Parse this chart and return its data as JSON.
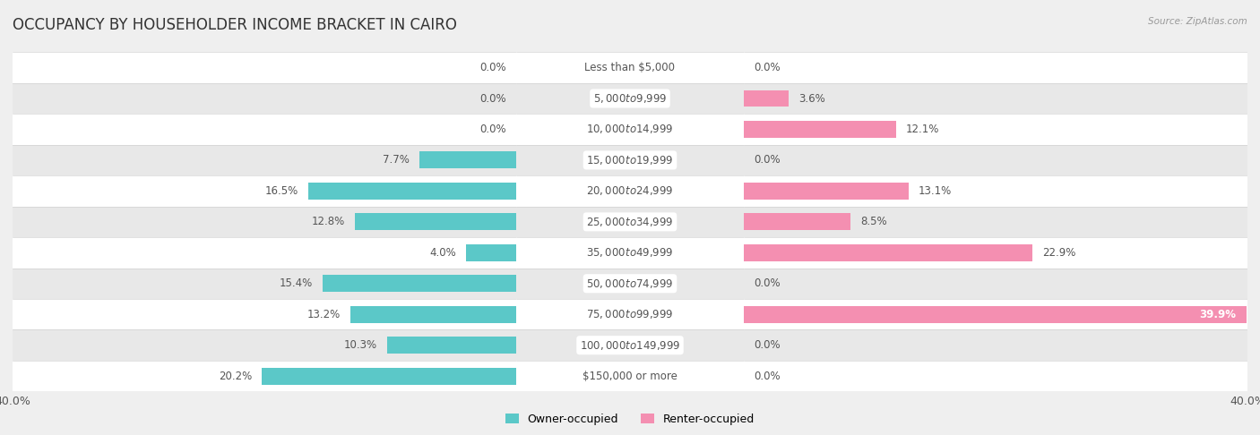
{
  "title": "OCCUPANCY BY HOUSEHOLDER INCOME BRACKET IN CAIRO",
  "source": "Source: ZipAtlas.com",
  "categories": [
    "Less than $5,000",
    "$5,000 to $9,999",
    "$10,000 to $14,999",
    "$15,000 to $19,999",
    "$20,000 to $24,999",
    "$25,000 to $34,999",
    "$35,000 to $49,999",
    "$50,000 to $74,999",
    "$75,000 to $99,999",
    "$100,000 to $149,999",
    "$150,000 or more"
  ],
  "owner_values": [
    0.0,
    0.0,
    0.0,
    7.7,
    16.5,
    12.8,
    4.0,
    15.4,
    13.2,
    10.3,
    20.2
  ],
  "renter_values": [
    0.0,
    3.6,
    12.1,
    0.0,
    13.1,
    8.5,
    22.9,
    0.0,
    39.9,
    0.0,
    0.0
  ],
  "owner_color": "#5bc8c8",
  "renter_color": "#f48fb1",
  "bg_color": "#efefef",
  "row_bg_even": "#ffffff",
  "row_bg_odd": "#e8e8e8",
  "label_box_color": "#ffffff",
  "label_text_color": "#555555",
  "value_text_color": "#555555",
  "title_color": "#333333",
  "source_color": "#999999",
  "title_fontsize": 12,
  "label_fontsize": 8.5,
  "value_fontsize": 8.5,
  "axis_max": 40.0,
  "bar_height": 0.55,
  "legend_owner": "Owner-occupied",
  "legend_renter": "Renter-occupied",
  "renter_special_white_threshold": 35.0
}
